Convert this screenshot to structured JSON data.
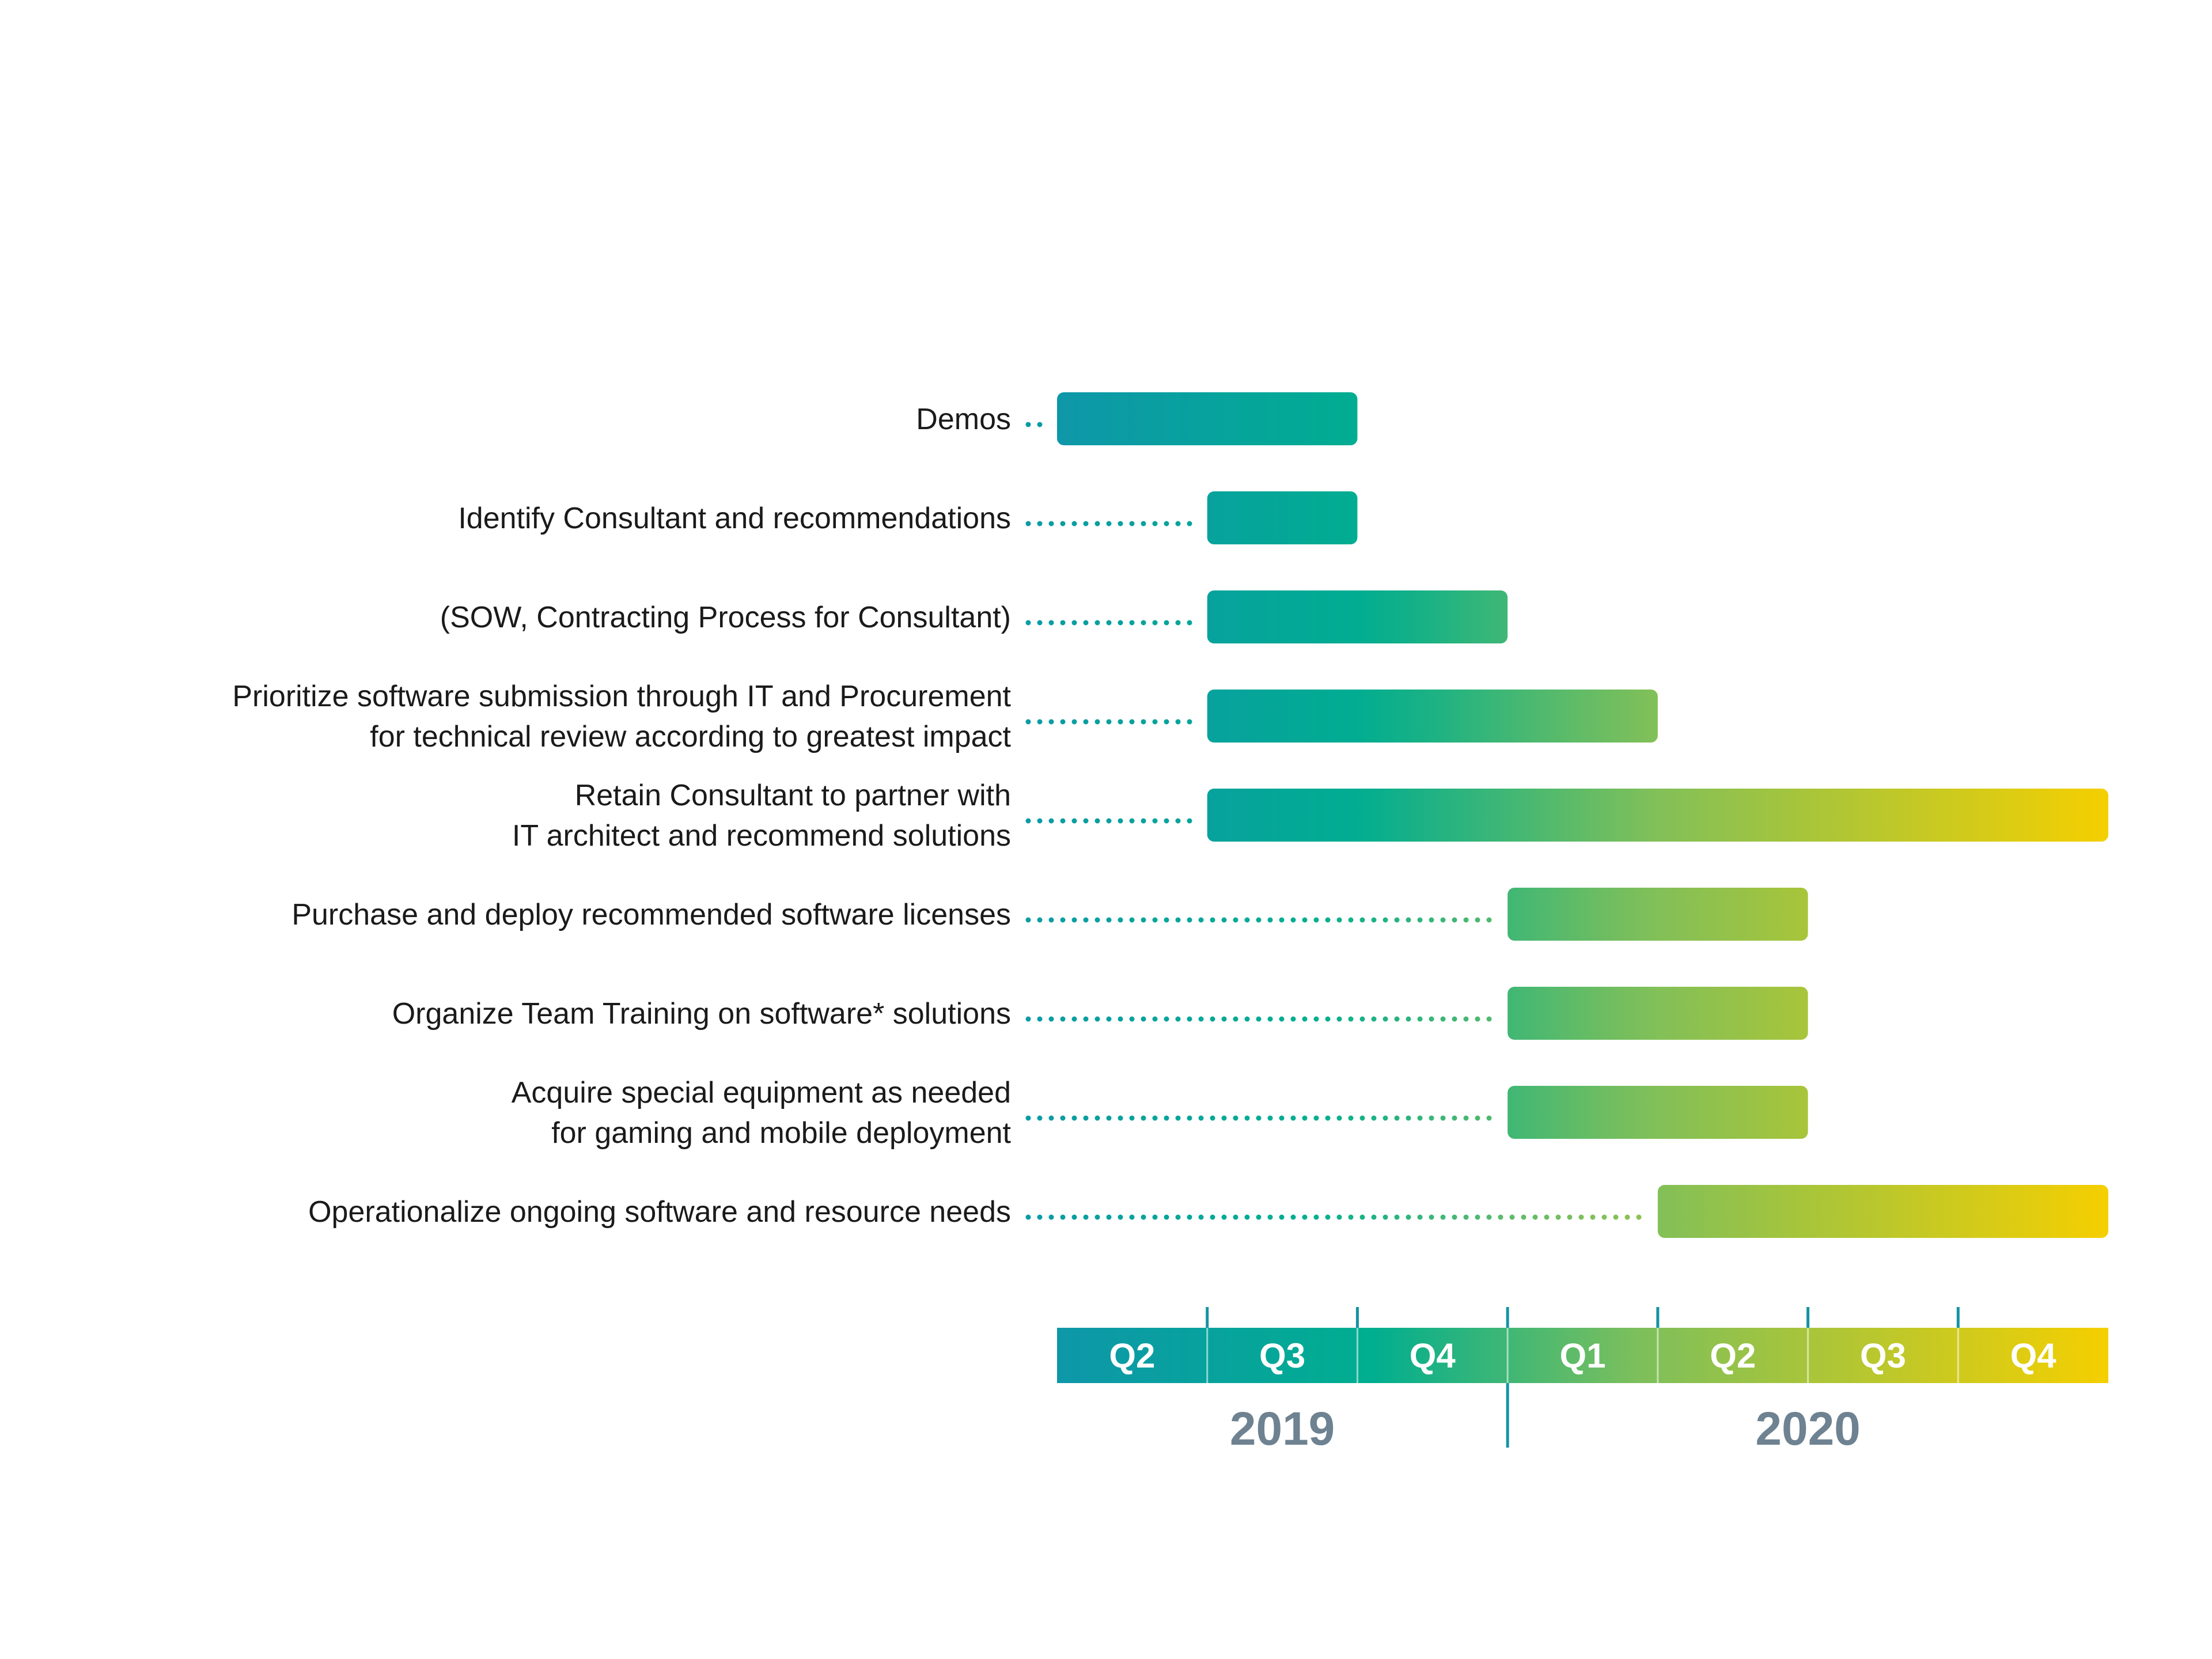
{
  "chart_data": {
    "type": "gantt",
    "title": "",
    "timeline": {
      "quarters": [
        "Q2",
        "Q3",
        "Q4",
        "Q1",
        "Q2",
        "Q3",
        "Q4"
      ],
      "years": [
        {
          "label": "2019",
          "start": 0,
          "end": 3
        },
        {
          "label": "2020",
          "start": 3,
          "end": 7
        }
      ]
    },
    "tasks": [
      {
        "lines": [
          "Demos"
        ],
        "start": 0,
        "end": 2
      },
      {
        "lines": [
          "Identify Consultant and recommendations"
        ],
        "start": 1,
        "end": 2
      },
      {
        "lines": [
          "(SOW, Contracting Process for Consultant)"
        ],
        "start": 1,
        "end": 3
      },
      {
        "lines": [
          "Prioritize software submission through IT and Procurement",
          "for technical review according to greatest impact"
        ],
        "start": 1,
        "end": 4
      },
      {
        "lines": [
          "Retain Consultant to partner with",
          "IT architect and recommend solutions"
        ],
        "start": 1,
        "end": 7
      },
      {
        "lines": [
          "Purchase and deploy recommended software licenses"
        ],
        "start": 3,
        "end": 5
      },
      {
        "lines": [
          "Organize Team Training on software* solutions"
        ],
        "start": 3,
        "end": 5
      },
      {
        "lines": [
          "Acquire special equipment as needed",
          "for gaming and mobile deployment"
        ],
        "start": 3,
        "end": 5
      },
      {
        "lines": [
          "Operationalize ongoing software and resource needs"
        ],
        "start": 4,
        "end": 7
      }
    ],
    "colors": {
      "start": "#0e97a9",
      "teal": "#00ae90",
      "green": "#7cbf5c",
      "end": "#f5cf00",
      "year_text": "#6e8291",
      "tick": "#1593a3"
    }
  }
}
